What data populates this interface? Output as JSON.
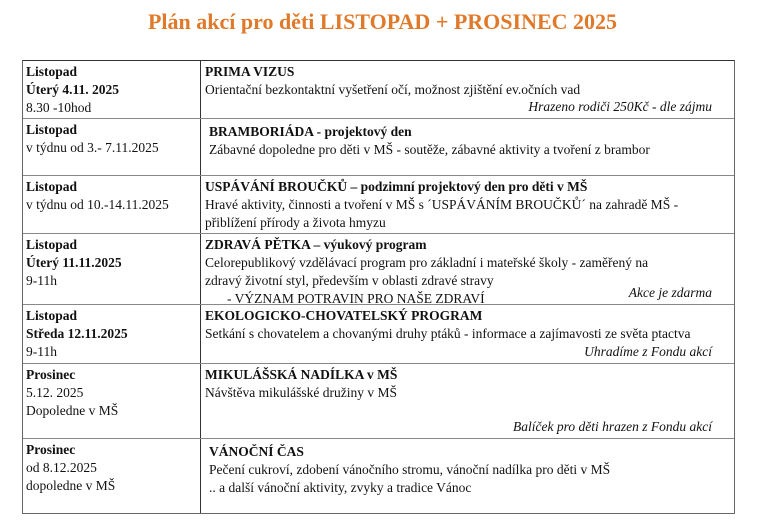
{
  "title": "Plán akcí pro děti LISTOPAD + PROSINEC 2025",
  "accent_color": "#e07a2a",
  "rows": [
    {
      "left": [
        "Listopad",
        "Úterý 4.11. 2025",
        "8.30 -10hod"
      ],
      "left_bold": [
        true,
        true,
        false
      ],
      "heading": "PRIMA VIZUS",
      "lines": [
        "Orientační bezkontaktní vyšetření očí, možnost zjištění ev.očních vad"
      ],
      "note": "Hrazeno rodiči 250Kč - dle zájmu"
    },
    {
      "left": [
        "Listopad",
        "v týdnu  od 3.- 7.11.2025"
      ],
      "left_bold": [
        true,
        false
      ],
      "heading": "BRAMBORIÁDA - projektový den",
      "lines": [
        "Zábavné dopoledne pro děti v MŠ  - soutěže, zábavné aktivity  a tvoření z brambor"
      ],
      "note": ""
    },
    {
      "left": [
        "Listopad",
        "v týdnu  od 10.-14.11.2025"
      ],
      "left_bold": [
        true,
        false
      ],
      "heading": "USPÁVÁNÍ BROUČKŮ – podzimní projektový den pro děti v MŠ",
      "lines": [
        "Hravé aktivity, činnosti a tvoření v MŠ s ´USPÁVÁNÍM BROUČKŮ´ na zahradě MŠ  -",
        "přiblížení přírody a života hmyzu"
      ],
      "note": ""
    },
    {
      "left": [
        "Listopad",
        "Úterý 11.11.2025",
        "9-11h"
      ],
      "left_bold": [
        true,
        true,
        false
      ],
      "heading": "ZDRAVÁ PĚTKA – výukový program",
      "lines": [
        "Celorepublikový vzdělávací program pro základní i mateřské školy - zaměřený na",
        "zdravý životní styl, především v oblasti zdravé stravy"
      ],
      "sub": "-  VÝZNAM POTRAVIN PRO NAŠE ZDRAVÍ",
      "note": "Akce je zdarma"
    },
    {
      "left": [
        "Listopad",
        "Středa 12.11.2025",
        "9-11h"
      ],
      "left_bold": [
        true,
        true,
        false
      ],
      "heading": "EKOLOGICKO-CHOVATELSKÝ PROGRAM",
      "lines": [
        "Setkání s chovatelem a chovanými druhy ptáků - informace a zajímavosti ze světa ptactva"
      ],
      "note": "Uhradíme z Fondu akcí"
    },
    {
      "left": [
        "Prosinec",
        "5.12. 2025",
        "Dopoledne v MŠ"
      ],
      "left_bold": [
        true,
        false,
        false
      ],
      "heading": "MIKULÁŠSKÁ NADÍLKA v MŠ",
      "lines": [
        "Návštěva mikulášské družiny v MŠ"
      ],
      "note": "Balíček pro děti hrazen z Fondu akcí"
    },
    {
      "left": [
        "Prosinec",
        "od 8.12.2025",
        "dopoledne v MŠ"
      ],
      "left_bold": [
        true,
        false,
        false
      ],
      "heading": "VÁNOČNÍ ČAS",
      "lines": [
        "Pečení cukroví, zdobení vánočního stromu, vánoční nadílka pro děti v MŠ",
        ".. a další vánoční aktivity, zvyky a tradice Vánoc"
      ],
      "note": ""
    }
  ]
}
